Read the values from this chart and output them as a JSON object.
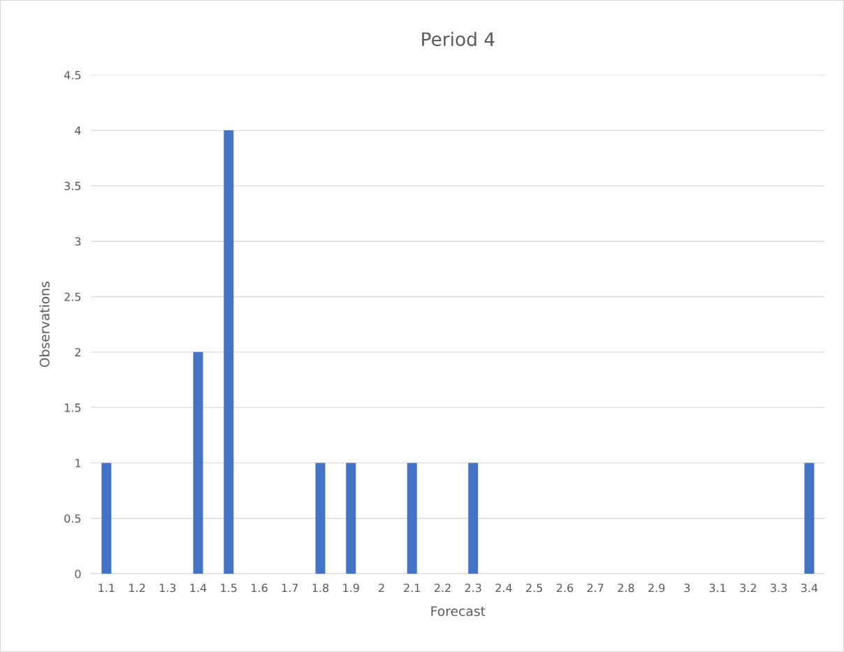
{
  "chart_data": {
    "type": "bar",
    "title": "Period 4",
    "xlabel": "Forecast",
    "ylabel": "Observations",
    "categories": [
      "1.1",
      "1.2",
      "1.3",
      "1.4",
      "1.5",
      "1.6",
      "1.7",
      "1.8",
      "1.9",
      "2",
      "2.1",
      "2.2",
      "2.3",
      "2.4",
      "2.5",
      "2.6",
      "2.7",
      "2.8",
      "2.9",
      "3",
      "3.1",
      "3.2",
      "3.3",
      "3.4"
    ],
    "values": [
      1,
      0,
      0,
      2,
      4,
      0,
      0,
      1,
      1,
      0,
      1,
      0,
      1,
      0,
      0,
      0,
      0,
      0,
      0,
      0,
      0,
      0,
      0,
      1
    ],
    "color": "#4472c4",
    "ylim": [
      0,
      4.5
    ],
    "yticks": [
      0,
      0.5,
      1,
      1.5,
      2,
      2.5,
      3,
      3.5,
      4,
      4.5
    ],
    "grid": "y"
  }
}
